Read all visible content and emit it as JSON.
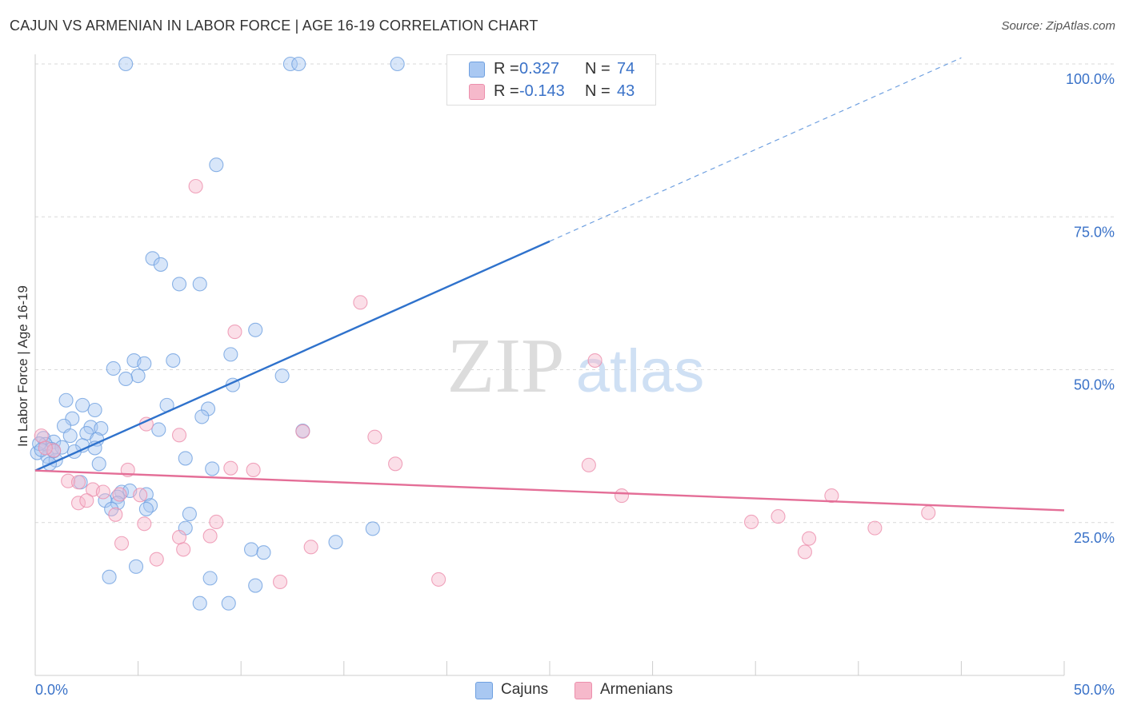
{
  "header": {
    "title": "CAJUN VS ARMENIAN IN LABOR FORCE | AGE 16-19 CORRELATION CHART",
    "source": "Source: ZipAtlas.com"
  },
  "legend": {
    "rows": [
      {
        "r_label": "R =",
        "r_value": "0.327",
        "n_label": "N =",
        "n_value": "74",
        "color": "#a9c8f2"
      },
      {
        "r_label": "R =",
        "r_value": "-0.143",
        "n_label": "N =",
        "n_value": "43",
        "color": "#f6b9cb"
      }
    ]
  },
  "bottom_legend": [
    {
      "label": "Cajuns",
      "color": "#a9c8f2"
    },
    {
      "label": "Armenians",
      "color": "#f6b9cb"
    }
  ],
  "watermark": {
    "part1": "ZIP",
    "part2": "atlas"
  },
  "chart_data": {
    "type": "scatter",
    "title": "CAJUN VS ARMENIAN IN LABOR FORCE | AGE 16-19 CORRELATION CHART",
    "xlabel": "",
    "ylabel": "In Labor Force | Age 16-19",
    "xlim": [
      0,
      50
    ],
    "ylim": [
      0,
      102
    ],
    "x_tick_labels": [
      "0.0%",
      "50.0%"
    ],
    "y_ticks": [
      25,
      50,
      75,
      100
    ],
    "y_tick_labels": [
      "25.0%",
      "50.0%",
      "75.0%",
      "100.0%"
    ],
    "grid": true,
    "series": [
      {
        "name": "Cajuns",
        "color": "#6fa0e0",
        "fill": "#a9c8f2",
        "trend": {
          "x0": 0,
          "y0": 33.5,
          "x1": 25,
          "y1": 71,
          "dash_to_x": 45,
          "dash_to_y": 101
        },
        "points": [
          [
            4.4,
            100
          ],
          [
            12.4,
            100
          ],
          [
            12.8,
            100
          ],
          [
            17.6,
            100
          ],
          [
            8.8,
            83.5
          ],
          [
            5.7,
            68.2
          ],
          [
            6.1,
            67.2
          ],
          [
            7,
            64
          ],
          [
            8,
            64
          ],
          [
            10.7,
            56.5
          ],
          [
            9.5,
            52.5
          ],
          [
            4.8,
            51.5
          ],
          [
            5.3,
            51
          ],
          [
            6.7,
            51.5
          ],
          [
            3.8,
            50.2
          ],
          [
            5,
            49
          ],
          [
            4.4,
            48.5
          ],
          [
            12,
            49
          ],
          [
            9.6,
            47.5
          ],
          [
            1.5,
            45
          ],
          [
            2.3,
            44.2
          ],
          [
            2.9,
            43.4
          ],
          [
            6.4,
            44.2
          ],
          [
            8.4,
            43.6
          ],
          [
            1.8,
            42
          ],
          [
            8.1,
            42.3
          ],
          [
            1.4,
            40.8
          ],
          [
            2.7,
            40.6
          ],
          [
            3.2,
            40.4
          ],
          [
            6.0,
            40.2
          ],
          [
            2.5,
            39.6
          ],
          [
            13.0,
            40.0
          ],
          [
            1.7,
            39.2
          ],
          [
            3.0,
            38.6
          ],
          [
            0.4,
            38.8
          ],
          [
            0.9,
            38.2
          ],
          [
            0.5,
            37.8
          ],
          [
            2.3,
            37.6
          ],
          [
            2.9,
            37.2
          ],
          [
            0.8,
            37.0
          ],
          [
            1.9,
            36.6
          ],
          [
            0.1,
            36.4
          ],
          [
            0.6,
            35.8
          ],
          [
            1.0,
            35.2
          ],
          [
            0.7,
            34.6
          ],
          [
            3.1,
            34.6
          ],
          [
            7.3,
            35.5
          ],
          [
            8.6,
            33.8
          ],
          [
            2.2,
            31.6
          ],
          [
            4.2,
            30.0
          ],
          [
            4.6,
            30.2
          ],
          [
            4.0,
            29.2
          ],
          [
            5.4,
            29.6
          ],
          [
            3.4,
            28.6
          ],
          [
            4.0,
            28.2
          ],
          [
            5.6,
            27.8
          ],
          [
            3.7,
            27.2
          ],
          [
            5.4,
            27.2
          ],
          [
            7.5,
            26.4
          ],
          [
            7.3,
            24.1
          ],
          [
            16.4,
            24.0
          ],
          [
            14.6,
            21.8
          ],
          [
            10.5,
            20.6
          ],
          [
            11.1,
            20.1
          ],
          [
            4.9,
            17.8
          ],
          [
            3.6,
            16.1
          ],
          [
            8.5,
            15.9
          ],
          [
            10.7,
            14.7
          ],
          [
            8.0,
            11.8
          ],
          [
            9.4,
            11.8
          ],
          [
            0.2,
            37.9
          ],
          [
            1.3,
            37.3
          ],
          [
            0.3,
            36.9
          ],
          [
            0.9,
            36.7
          ]
        ]
      },
      {
        "name": "Armenians",
        "color": "#ec8fac",
        "fill": "#f6b9cb",
        "trend": {
          "x0": 0,
          "y0": 33.5,
          "x1": 50,
          "y1": 27
        },
        "points": [
          [
            7.8,
            80
          ],
          [
            15.8,
            61
          ],
          [
            9.7,
            56.2
          ],
          [
            27.2,
            51.5
          ],
          [
            5.4,
            41.1
          ],
          [
            7.0,
            39.3
          ],
          [
            13.0,
            39.9
          ],
          [
            16.5,
            39.0
          ],
          [
            0.3,
            39.2
          ],
          [
            0.9,
            36.8
          ],
          [
            17.5,
            34.6
          ],
          [
            26.9,
            34.4
          ],
          [
            4.5,
            33.6
          ],
          [
            9.5,
            33.9
          ],
          [
            10.6,
            33.6
          ],
          [
            1.6,
            31.8
          ],
          [
            2.1,
            31.6
          ],
          [
            2.8,
            30.4
          ],
          [
            3.3,
            30.0
          ],
          [
            5.1,
            29.5
          ],
          [
            4.1,
            29.6
          ],
          [
            28.5,
            29.4
          ],
          [
            38.7,
            29.4
          ],
          [
            2.1,
            28.2
          ],
          [
            2.5,
            28.6
          ],
          [
            3.9,
            26.3
          ],
          [
            36.1,
            26.0
          ],
          [
            43.4,
            26.6
          ],
          [
            34.8,
            25.1
          ],
          [
            5.3,
            24.8
          ],
          [
            8.8,
            25.1
          ],
          [
            40.8,
            24.1
          ],
          [
            8.5,
            22.8
          ],
          [
            7.0,
            22.6
          ],
          [
            37.6,
            22.4
          ],
          [
            4.2,
            21.6
          ],
          [
            7.2,
            20.6
          ],
          [
            13.4,
            21.0
          ],
          [
            37.4,
            20.2
          ],
          [
            5.9,
            19.0
          ],
          [
            11.9,
            15.3
          ],
          [
            19.6,
            15.7
          ],
          [
            0.5,
            37.2
          ]
        ]
      }
    ]
  }
}
